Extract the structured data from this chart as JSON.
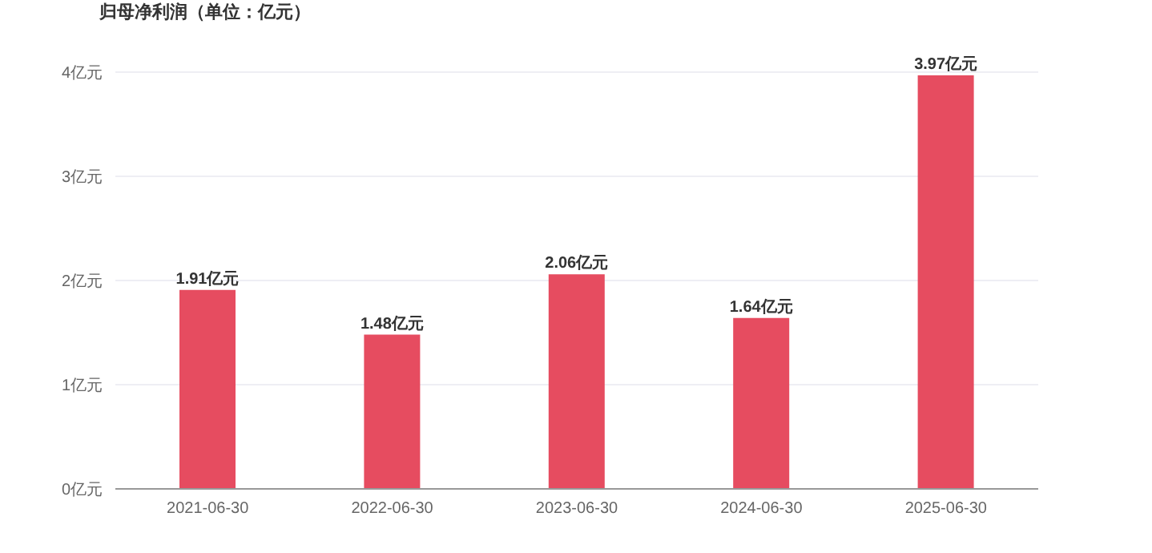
{
  "chart_data": {
    "type": "bar",
    "title": "归母净利润（单位：亿元）",
    "categories": [
      "2021-06-30",
      "2022-06-30",
      "2023-06-30",
      "2024-06-30",
      "2025-06-30"
    ],
    "series": [
      {
        "color": "#e64c60",
        "values": [
          1.91,
          1.48,
          2.06,
          1.64,
          3.97
        ],
        "value_labels": [
          "1.91亿元",
          "1.48亿元",
          "2.06亿元",
          "1.64亿元",
          "3.97亿元"
        ]
      }
    ],
    "ylim": [
      0,
      4
    ],
    "yticks": [
      {
        "value": 0,
        "label": "0亿元"
      },
      {
        "value": 1,
        "label": "1亿元"
      },
      {
        "value": 2,
        "label": "2亿元"
      },
      {
        "value": 3,
        "label": "3亿元"
      },
      {
        "value": 4,
        "label": "4亿元"
      }
    ],
    "grid": "y",
    "legend": false
  }
}
